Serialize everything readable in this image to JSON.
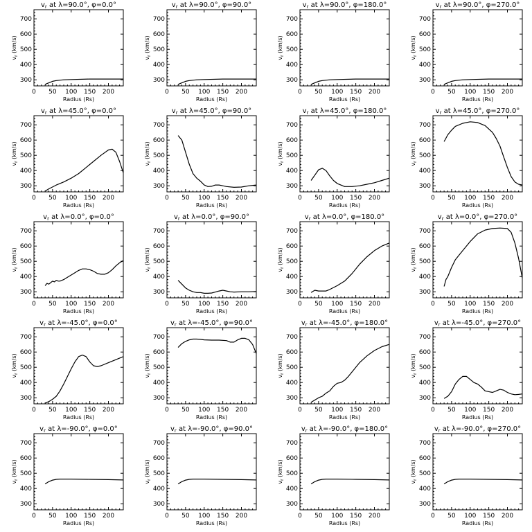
{
  "chart_data": [
    {
      "type": "line",
      "title": "v_r at λ=90.0°, φ=0.0°",
      "title_parts": {
        "lat": "90.0",
        "lon": "0.0"
      },
      "xlabel": "Radius (Rs)",
      "ylabel": "v_r (km/s)",
      "xlim": [
        0,
        240
      ],
      "ylim": [
        260,
        760
      ],
      "x": [
        30,
        40,
        50,
        60,
        80,
        100,
        150,
        200,
        240
      ],
      "y": [
        270,
        280,
        290,
        295,
        300,
        302,
        305,
        305,
        305
      ]
    },
    {
      "type": "line",
      "title": "v_r at λ=90.0°, φ=90.0°",
      "title_parts": {
        "lat": "90.0",
        "lon": "90.0"
      },
      "xlabel": "Radius (Rs)",
      "ylabel": "v_r (km/s)",
      "xlim": [
        0,
        240
      ],
      "ylim": [
        260,
        760
      ],
      "x": [
        30,
        40,
        50,
        60,
        80,
        100,
        150,
        200,
        240
      ],
      "y": [
        270,
        280,
        290,
        295,
        300,
        302,
        305,
        305,
        305
      ]
    },
    {
      "type": "line",
      "title": "v_r at λ=90.0°, φ=180.0°",
      "title_parts": {
        "lat": "90.0",
        "lon": "180.0"
      },
      "xlabel": "Radius (Rs)",
      "ylabel": "v_r (km/s)",
      "xlim": [
        0,
        240
      ],
      "ylim": [
        260,
        760
      ],
      "x": [
        30,
        40,
        50,
        60,
        80,
        100,
        150,
        200,
        240
      ],
      "y": [
        270,
        280,
        290,
        295,
        300,
        302,
        305,
        305,
        305
      ]
    },
    {
      "type": "line",
      "title": "v_r at λ=90.0°, φ=270.0°",
      "title_parts": {
        "lat": "90.0",
        "lon": "270.0"
      },
      "xlabel": "Radius (Rs)",
      "ylabel": "v_r (km/s)",
      "xlim": [
        0,
        240
      ],
      "ylim": [
        260,
        760
      ],
      "x": [
        30,
        40,
        50,
        60,
        80,
        100,
        150,
        200,
        240
      ],
      "y": [
        270,
        280,
        290,
        295,
        300,
        302,
        305,
        305,
        305
      ]
    },
    {
      "type": "line",
      "title": "v_r at λ=45.0°, φ=0.0°",
      "title_parts": {
        "lat": "45.0",
        "lon": "0.0"
      },
      "xlabel": "Radius (Rs)",
      "ylabel": "v_r (km/s)",
      "xlim": [
        0,
        240
      ],
      "ylim": [
        260,
        760
      ],
      "x": [
        30,
        40,
        60,
        80,
        100,
        120,
        140,
        160,
        180,
        200,
        210,
        220,
        230,
        240
      ],
      "y": [
        265,
        280,
        305,
        325,
        350,
        380,
        420,
        460,
        500,
        535,
        540,
        520,
        460,
        385
      ]
    },
    {
      "type": "line",
      "title": "v_r at λ=45.0°, φ=90.0°",
      "title_parts": {
        "lat": "45.0",
        "lon": "90.0"
      },
      "xlabel": "Radius (Rs)",
      "ylabel": "v_r (km/s)",
      "xlim": [
        0,
        240
      ],
      "ylim": [
        260,
        760
      ],
      "x": [
        30,
        40,
        50,
        60,
        70,
        80,
        90,
        100,
        110,
        120,
        130,
        140,
        150,
        160,
        180,
        200,
        220,
        240
      ],
      "y": [
        630,
        600,
        520,
        440,
        380,
        350,
        330,
        305,
        295,
        297,
        305,
        305,
        300,
        295,
        290,
        292,
        300,
        305
      ]
    },
    {
      "type": "line",
      "title": "v_r at λ=45.0°, φ=180.0°",
      "title_parts": {
        "lat": "45.0",
        "lon": "180.0"
      },
      "xlabel": "Radius (Rs)",
      "ylabel": "v_r (km/s)",
      "xlim": [
        0,
        240
      ],
      "ylim": [
        260,
        760
      ],
      "x": [
        30,
        40,
        50,
        60,
        70,
        80,
        90,
        100,
        120,
        140,
        160,
        180,
        200,
        220,
        240
      ],
      "y": [
        335,
        370,
        405,
        415,
        400,
        365,
        335,
        315,
        295,
        295,
        300,
        310,
        320,
        335,
        350
      ]
    },
    {
      "type": "line",
      "title": "v_r at λ=45.0°, φ=270.0°",
      "title_parts": {
        "lat": "45.0",
        "lon": "270.0"
      },
      "xlabel": "Radius (Rs)",
      "ylabel": "v_r (km/s)",
      "xlim": [
        0,
        240
      ],
      "ylim": [
        260,
        760
      ],
      "x": [
        30,
        40,
        50,
        60,
        80,
        100,
        120,
        140,
        160,
        170,
        180,
        190,
        200,
        210,
        220,
        230,
        240
      ],
      "y": [
        590,
        635,
        665,
        690,
        710,
        720,
        715,
        695,
        650,
        610,
        560,
        490,
        420,
        360,
        325,
        310,
        305
      ]
    },
    {
      "type": "line",
      "title": "v_r at λ=0.0°, φ=0.0°",
      "title_parts": {
        "lat": "0.0",
        "lon": "0.0"
      },
      "xlabel": "Radius (Rs)",
      "ylabel": "v_r (km/s)",
      "xlim": [
        0,
        240
      ],
      "ylim": [
        260,
        760
      ],
      "x": [
        30,
        35,
        40,
        45,
        50,
        55,
        60,
        65,
        70,
        80,
        90,
        100,
        110,
        120,
        130,
        140,
        150,
        160,
        170,
        180,
        190,
        200,
        210,
        220,
        230,
        240
      ],
      "y": [
        340,
        355,
        350,
        360,
        370,
        365,
        375,
        370,
        370,
        380,
        395,
        410,
        425,
        440,
        450,
        450,
        445,
        435,
        420,
        415,
        415,
        425,
        445,
        470,
        490,
        505
      ]
    },
    {
      "type": "line",
      "title": "v_r at λ=0.0°, φ=90.0°",
      "title_parts": {
        "lat": "0.0",
        "lon": "90.0"
      },
      "xlabel": "Radius (Rs)",
      "ylabel": "v_r (km/s)",
      "xlim": [
        0,
        240
      ],
      "ylim": [
        260,
        760
      ],
      "x": [
        30,
        40,
        50,
        60,
        70,
        80,
        90,
        100,
        110,
        120,
        130,
        140,
        150,
        160,
        170,
        180,
        200,
        220,
        240
      ],
      "y": [
        375,
        350,
        325,
        310,
        300,
        295,
        295,
        290,
        290,
        292,
        298,
        305,
        310,
        305,
        300,
        298,
        300,
        300,
        302
      ]
    },
    {
      "type": "line",
      "title": "v_r at λ=0.0°, φ=180.0°",
      "title_parts": {
        "lat": "0.0",
        "lon": "180.0"
      },
      "xlabel": "Radius (Rs)",
      "ylabel": "v_r (km/s)",
      "xlim": [
        0,
        240
      ],
      "ylim": [
        260,
        760
      ],
      "x": [
        30,
        40,
        50,
        60,
        70,
        80,
        100,
        120,
        140,
        160,
        180,
        200,
        220,
        240
      ],
      "y": [
        295,
        310,
        305,
        305,
        305,
        315,
        340,
        370,
        420,
        480,
        530,
        570,
        600,
        620
      ]
    },
    {
      "type": "line",
      "title": "v_r at λ=0.0°, φ=270.0°",
      "title_parts": {
        "lat": "0.0",
        "lon": "270.0"
      },
      "xlabel": "Radius (Rs)",
      "ylabel": "v_r (km/s)",
      "xlim": [
        0,
        240
      ],
      "ylim": [
        260,
        760
      ],
      "x": [
        30,
        35,
        40,
        50,
        60,
        70,
        80,
        100,
        120,
        140,
        160,
        180,
        200,
        210,
        220,
        230,
        240
      ],
      "y": [
        335,
        380,
        400,
        460,
        510,
        540,
        570,
        630,
        680,
        705,
        715,
        718,
        715,
        690,
        620,
        520,
        390
      ]
    },
    {
      "type": "line",
      "title": "v_r at λ=-45.0°, φ=0.0°",
      "title_parts": {
        "lat": "-45.0",
        "lon": "0.0"
      },
      "xlabel": "Radius (Rs)",
      "ylabel": "v_r (km/s)",
      "xlim": [
        0,
        240
      ],
      "ylim": [
        260,
        760
      ],
      "x": [
        30,
        40,
        50,
        60,
        70,
        80,
        90,
        100,
        110,
        120,
        130,
        140,
        150,
        160,
        170,
        180,
        200,
        220,
        240
      ],
      "y": [
        265,
        275,
        290,
        310,
        345,
        390,
        440,
        490,
        535,
        570,
        580,
        570,
        535,
        510,
        505,
        510,
        530,
        550,
        570
      ]
    },
    {
      "type": "line",
      "title": "v_r at λ=-45.0°, φ=90.0°",
      "title_parts": {
        "lat": "-45.0",
        "lon": "90.0"
      },
      "xlabel": "Radius (Rs)",
      "ylabel": "v_r (km/s)",
      "xlim": [
        0,
        240
      ],
      "ylim": [
        260,
        760
      ],
      "x": [
        30,
        40,
        50,
        60,
        70,
        80,
        90,
        100,
        120,
        140,
        160,
        170,
        180,
        190,
        200,
        210,
        220,
        230,
        240
      ],
      "y": [
        630,
        655,
        670,
        680,
        685,
        685,
        683,
        680,
        678,
        678,
        675,
        665,
        665,
        680,
        690,
        690,
        680,
        650,
        590
      ]
    },
    {
      "type": "line",
      "title": "v_r at λ=-45.0°, φ=180.0°",
      "title_parts": {
        "lat": "-45.0",
        "lon": "180.0"
      },
      "xlabel": "Radius (Rs)",
      "ylabel": "v_r (km/s)",
      "xlim": [
        0,
        240
      ],
      "ylim": [
        260,
        760
      ],
      "x": [
        30,
        40,
        50,
        60,
        70,
        80,
        90,
        100,
        110,
        120,
        130,
        140,
        160,
        180,
        200,
        220,
        240
      ],
      "y": [
        270,
        285,
        300,
        310,
        330,
        345,
        375,
        395,
        400,
        415,
        440,
        470,
        530,
        575,
        610,
        635,
        650
      ]
    },
    {
      "type": "line",
      "title": "v_r at λ=-45.0°, φ=270.0°",
      "title_parts": {
        "lat": "-45.0",
        "lon": "270.0"
      },
      "xlabel": "Radius (Rs)",
      "ylabel": "v_r (km/s)",
      "xlim": [
        0,
        240
      ],
      "ylim": [
        260,
        760
      ],
      "x": [
        30,
        40,
        50,
        60,
        70,
        80,
        90,
        100,
        110,
        120,
        130,
        140,
        150,
        160,
        170,
        180,
        190,
        200,
        210,
        220,
        230,
        240
      ],
      "y": [
        295,
        310,
        340,
        390,
        420,
        440,
        440,
        420,
        400,
        390,
        370,
        345,
        340,
        335,
        345,
        355,
        350,
        335,
        325,
        320,
        322,
        325
      ]
    },
    {
      "type": "line",
      "title": "v_r at λ=-90.0°, φ=0.0°",
      "title_parts": {
        "lat": "-90.0",
        "lon": "0.0"
      },
      "xlabel": "Radius (Rs)",
      "ylabel": "v_r (km/s)",
      "xlim": [
        0,
        240
      ],
      "ylim": [
        260,
        760
      ],
      "x": [
        30,
        40,
        50,
        60,
        70,
        100,
        150,
        200,
        240
      ],
      "y": [
        430,
        445,
        455,
        460,
        462,
        462,
        460,
        458,
        456
      ]
    },
    {
      "type": "line",
      "title": "v_r at λ=-90.0°, φ=90.0°",
      "title_parts": {
        "lat": "-90.0",
        "lon": "90.0"
      },
      "xlabel": "Radius (Rs)",
      "ylabel": "v_r (km/s)",
      "xlim": [
        0,
        240
      ],
      "ylim": [
        260,
        760
      ],
      "x": [
        30,
        40,
        50,
        60,
        70,
        100,
        150,
        200,
        240
      ],
      "y": [
        430,
        445,
        455,
        460,
        462,
        462,
        460,
        458,
        456
      ]
    },
    {
      "type": "line",
      "title": "v_r at λ=-90.0°, φ=180.0°",
      "title_parts": {
        "lat": "-90.0",
        "lon": "180.0"
      },
      "xlabel": "Radius (Rs)",
      "ylabel": "v_r (km/s)",
      "xlim": [
        0,
        240
      ],
      "ylim": [
        260,
        760
      ],
      "x": [
        30,
        40,
        50,
        60,
        70,
        100,
        150,
        200,
        240
      ],
      "y": [
        430,
        445,
        455,
        460,
        462,
        462,
        460,
        458,
        456
      ]
    },
    {
      "type": "line",
      "title": "v_r at λ=-90.0°, φ=270.0°",
      "title_parts": {
        "lat": "-90.0",
        "lon": "270.0"
      },
      "xlabel": "Radius (Rs)",
      "ylabel": "v_r (km/s)",
      "xlim": [
        0,
        240
      ],
      "ylim": [
        260,
        760
      ],
      "x": [
        30,
        40,
        50,
        60,
        70,
        100,
        150,
        200,
        240
      ],
      "y": [
        430,
        445,
        455,
        460,
        462,
        462,
        460,
        458,
        456
      ]
    }
  ],
  "axes": {
    "x_ticks": [
      0,
      50,
      100,
      150,
      200
    ],
    "y_ticks": [
      300,
      400,
      500,
      600,
      700
    ],
    "line_color": "#000000"
  }
}
